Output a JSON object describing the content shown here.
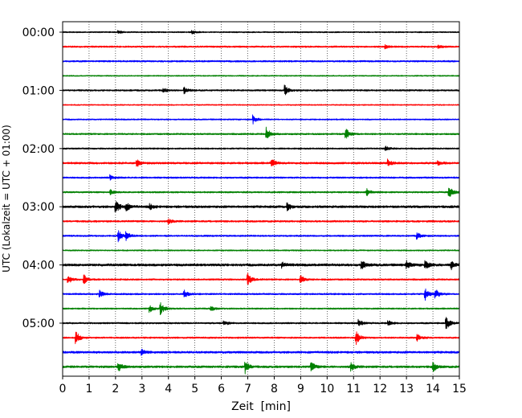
{
  "chart_data": {
    "type": "line",
    "subtype": "helicorder-seismogram",
    "xlabel": "Zeit  [min]",
    "ylabel": "UTC (Lokalzeit = UTC + 01:00)",
    "xlim": [
      0,
      15
    ],
    "x_ticks": [
      "0",
      "1",
      "2",
      "3",
      "4",
      "5",
      "6",
      "7",
      "8",
      "9",
      "10",
      "11",
      "12",
      "13",
      "14",
      "15"
    ],
    "y_tick_labels": [
      "00:00",
      "01:00",
      "02:00",
      "03:00",
      "04:00",
      "05:00"
    ],
    "grid": "vertical dotted lines at each minute",
    "trace_interval_minutes": 15,
    "trace_colors": [
      "#000000",
      "#ff0000",
      "#0000ff",
      "#008000"
    ],
    "traces": [
      {
        "start": "00:00",
        "color": "#000000",
        "noise": 0.8,
        "events": [
          {
            "t": 2.1,
            "a": 2
          },
          {
            "t": 4.9,
            "a": 2
          }
        ]
      },
      {
        "start": "00:15",
        "color": "#ff0000",
        "noise": 1.0,
        "events": [
          {
            "t": 12.2,
            "a": 2
          },
          {
            "t": 14.2,
            "a": 2
          }
        ]
      },
      {
        "start": "00:30",
        "color": "#0000ff",
        "noise": 1.0,
        "events": []
      },
      {
        "start": "00:45",
        "color": "#008000",
        "noise": 0.7,
        "events": []
      },
      {
        "start": "01:00",
        "color": "#000000",
        "noise": 1.0,
        "events": [
          {
            "t": 3.8,
            "a": 3
          },
          {
            "t": 4.6,
            "a": 4
          },
          {
            "t": 8.4,
            "a": 6
          }
        ]
      },
      {
        "start": "01:15",
        "color": "#ff0000",
        "noise": 0.7,
        "events": []
      },
      {
        "start": "01:30",
        "color": "#0000ff",
        "noise": 0.8,
        "events": [
          {
            "t": 7.2,
            "a": 5
          }
        ]
      },
      {
        "start": "01:45",
        "color": "#008000",
        "noise": 1.0,
        "events": [
          {
            "t": 7.7,
            "a": 8
          },
          {
            "t": 10.7,
            "a": 7
          }
        ]
      },
      {
        "start": "02:00",
        "color": "#000000",
        "noise": 0.9,
        "events": [
          {
            "t": 12.2,
            "a": 3
          }
        ]
      },
      {
        "start": "02:15",
        "color": "#ff0000",
        "noise": 1.2,
        "events": [
          {
            "t": 2.8,
            "a": 5
          },
          {
            "t": 7.9,
            "a": 5
          },
          {
            "t": 12.3,
            "a": 4
          },
          {
            "t": 14.2,
            "a": 3
          }
        ]
      },
      {
        "start": "02:30",
        "color": "#0000ff",
        "noise": 1.0,
        "events": [
          {
            "t": 1.8,
            "a": 3
          }
        ]
      },
      {
        "start": "02:45",
        "color": "#008000",
        "noise": 1.0,
        "events": [
          {
            "t": 1.8,
            "a": 3
          },
          {
            "t": 11.5,
            "a": 4
          },
          {
            "t": 14.6,
            "a": 8
          }
        ]
      },
      {
        "start": "03:00",
        "color": "#000000",
        "noise": 1.4,
        "events": [
          {
            "t": 2.0,
            "a": 8
          },
          {
            "t": 2.4,
            "a": 5
          },
          {
            "t": 3.3,
            "a": 3
          },
          {
            "t": 8.5,
            "a": 4
          }
        ]
      },
      {
        "start": "03:15",
        "color": "#ff0000",
        "noise": 1.1,
        "events": [
          {
            "t": 4.0,
            "a": 3
          }
        ]
      },
      {
        "start": "03:30",
        "color": "#0000ff",
        "noise": 1.0,
        "events": [
          {
            "t": 2.1,
            "a": 7
          },
          {
            "t": 2.4,
            "a": 5
          },
          {
            "t": 13.4,
            "a": 4
          }
        ]
      },
      {
        "start": "03:45",
        "color": "#008000",
        "noise": 0.8,
        "events": []
      },
      {
        "start": "04:00",
        "color": "#000000",
        "noise": 1.5,
        "events": [
          {
            "t": 8.3,
            "a": 3
          },
          {
            "t": 11.3,
            "a": 6
          },
          {
            "t": 13.0,
            "a": 5
          },
          {
            "t": 13.7,
            "a": 6
          },
          {
            "t": 14.7,
            "a": 5
          }
        ]
      },
      {
        "start": "04:15",
        "color": "#ff0000",
        "noise": 1.0,
        "events": [
          {
            "t": 0.2,
            "a": 6
          },
          {
            "t": 0.8,
            "a": 6
          },
          {
            "t": 7.0,
            "a": 8
          },
          {
            "t": 9.0,
            "a": 5
          }
        ]
      },
      {
        "start": "04:30",
        "color": "#0000ff",
        "noise": 1.0,
        "events": [
          {
            "t": 1.4,
            "a": 4
          },
          {
            "t": 4.6,
            "a": 5
          },
          {
            "t": 13.7,
            "a": 8
          },
          {
            "t": 14.1,
            "a": 6
          }
        ]
      },
      {
        "start": "04:45",
        "color": "#008000",
        "noise": 0.9,
        "events": [
          {
            "t": 3.3,
            "a": 4
          },
          {
            "t": 3.7,
            "a": 8
          },
          {
            "t": 5.6,
            "a": 3
          }
        ]
      },
      {
        "start": "05:00",
        "color": "#000000",
        "noise": 1.0,
        "events": [
          {
            "t": 6.1,
            "a": 3
          },
          {
            "t": 11.2,
            "a": 4
          },
          {
            "t": 12.3,
            "a": 3
          },
          {
            "t": 14.5,
            "a": 8
          }
        ]
      },
      {
        "start": "05:15",
        "color": "#ff0000",
        "noise": 1.0,
        "events": [
          {
            "t": 0.5,
            "a": 8
          },
          {
            "t": 11.1,
            "a": 8
          },
          {
            "t": 13.4,
            "a": 5
          }
        ]
      },
      {
        "start": "05:30",
        "color": "#0000ff",
        "noise": 1.3,
        "events": [
          {
            "t": 3.0,
            "a": 3
          }
        ]
      },
      {
        "start": "05:45",
        "color": "#008000",
        "noise": 1.3,
        "events": [
          {
            "t": 2.1,
            "a": 6
          },
          {
            "t": 6.9,
            "a": 8
          },
          {
            "t": 9.4,
            "a": 6
          },
          {
            "t": 10.9,
            "a": 5
          },
          {
            "t": 14.0,
            "a": 6
          }
        ]
      }
    ]
  }
}
